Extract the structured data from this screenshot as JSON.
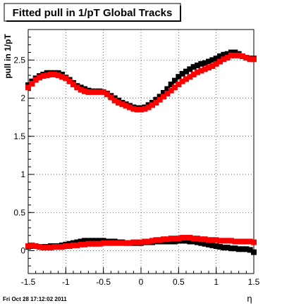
{
  "chart_data": {
    "type": "scatter",
    "title": "Fitted pull in 1/pT  Global Tracks",
    "xlabel": "η",
    "ylabel": "pull in 1/pT",
    "footer": "Fri Oct 28 17:12:02 2011",
    "xlim": [
      -1.5,
      1.5
    ],
    "ylim": [
      -0.3,
      2.9
    ],
    "grid": true,
    "legend": "none",
    "x_ticks": [
      "-1.5",
      "-1",
      "-0.5",
      "0",
      "0.5",
      "1",
      "1.5"
    ],
    "y_ticks": [
      "0",
      "0.5",
      "1",
      "1.5",
      "2",
      "2.5"
    ],
    "x": [
      -1.5,
      -1.45,
      -1.4,
      -1.35,
      -1.3,
      -1.25,
      -1.2,
      -1.15,
      -1.1,
      -1.05,
      -1.0,
      -0.95,
      -0.9,
      -0.85,
      -0.8,
      -0.75,
      -0.7,
      -0.65,
      -0.6,
      -0.55,
      -0.5,
      -0.45,
      -0.4,
      -0.35,
      -0.3,
      -0.25,
      -0.2,
      -0.15,
      -0.1,
      -0.05,
      0.0,
      0.05,
      0.1,
      0.15,
      0.2,
      0.25,
      0.3,
      0.35,
      0.4,
      0.45,
      0.5,
      0.55,
      0.6,
      0.65,
      0.7,
      0.75,
      0.8,
      0.85,
      0.9,
      0.95,
      1.0,
      1.05,
      1.1,
      1.15,
      1.2,
      1.25,
      1.3,
      1.35,
      1.4,
      1.45,
      1.5
    ],
    "series": [
      {
        "color": "#000000",
        "values": [
          2.17,
          2.22,
          2.26,
          2.29,
          2.31,
          2.33,
          2.33,
          2.33,
          2.33,
          2.31,
          2.27,
          2.24,
          2.2,
          2.16,
          2.14,
          2.12,
          2.1,
          2.09,
          2.09,
          2.09,
          2.08,
          2.06,
          2.03,
          2.0,
          1.97,
          1.94,
          1.92,
          1.9,
          1.88,
          1.87,
          1.87,
          1.88,
          1.91,
          1.94,
          1.98,
          2.02,
          2.07,
          2.12,
          2.18,
          2.23,
          2.28,
          2.32,
          2.35,
          2.38,
          2.41,
          2.43,
          2.45,
          2.46,
          2.48,
          2.5,
          2.52,
          2.55,
          2.57,
          2.58,
          2.6,
          2.6,
          2.58,
          2.55,
          2.53,
          2.52,
          2.52
        ]
      },
      {
        "color": "#ff0000",
        "values": [
          2.14,
          2.19,
          2.24,
          2.27,
          2.29,
          2.3,
          2.31,
          2.31,
          2.3,
          2.28,
          2.26,
          2.22,
          2.18,
          2.14,
          2.11,
          2.09,
          2.08,
          2.08,
          2.08,
          2.08,
          2.08,
          2.05,
          2.01,
          1.97,
          1.94,
          1.92,
          1.9,
          1.88,
          1.86,
          1.85,
          1.85,
          1.86,
          1.88,
          1.91,
          1.94,
          1.98,
          2.02,
          2.06,
          2.1,
          2.14,
          2.18,
          2.22,
          2.25,
          2.28,
          2.31,
          2.34,
          2.36,
          2.38,
          2.4,
          2.42,
          2.45,
          2.48,
          2.51,
          2.53,
          2.56,
          2.56,
          2.56,
          2.55,
          2.53,
          2.51,
          2.51
        ]
      },
      {
        "color": "#000000",
        "values": [
          0.05,
          0.06,
          0.06,
          0.05,
          0.05,
          0.05,
          0.06,
          0.06,
          0.06,
          0.07,
          0.08,
          0.09,
          0.1,
          0.11,
          0.12,
          0.13,
          0.13,
          0.13,
          0.13,
          0.13,
          0.13,
          0.12,
          0.12,
          0.12,
          0.11,
          0.11,
          0.1,
          0.1,
          0.1,
          0.1,
          0.1,
          0.11,
          0.11,
          0.11,
          0.12,
          0.12,
          0.12,
          0.12,
          0.12,
          0.12,
          0.13,
          0.13,
          0.13,
          0.12,
          0.12,
          0.11,
          0.1,
          0.09,
          0.08,
          0.07,
          0.06,
          0.05,
          0.04,
          0.04,
          0.03,
          0.03,
          0.02,
          0.02,
          0.02,
          0.01,
          -0.02
        ]
      },
      {
        "color": "#ff0000",
        "values": [
          0.06,
          0.07,
          0.06,
          0.05,
          0.04,
          0.04,
          0.04,
          0.05,
          0.05,
          0.05,
          0.06,
          0.06,
          0.07,
          0.07,
          0.08,
          0.08,
          0.09,
          0.09,
          0.09,
          0.09,
          0.1,
          0.1,
          0.1,
          0.1,
          0.1,
          0.1,
          0.1,
          0.1,
          0.11,
          0.11,
          0.11,
          0.12,
          0.12,
          0.13,
          0.14,
          0.14,
          0.15,
          0.15,
          0.16,
          0.16,
          0.16,
          0.17,
          0.17,
          0.17,
          0.16,
          0.16,
          0.15,
          0.15,
          0.14,
          0.14,
          0.14,
          0.13,
          0.13,
          0.13,
          0.13,
          0.12,
          0.12,
          0.12,
          0.12,
          0.12,
          0.11
        ]
      }
    ]
  }
}
